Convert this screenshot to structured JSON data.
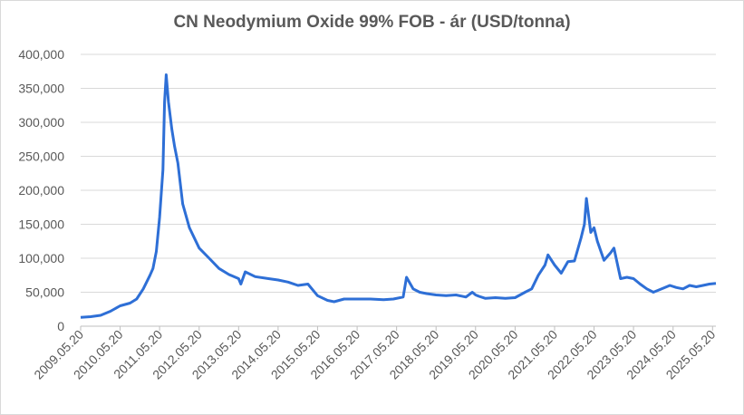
{
  "chart_data": {
    "type": "line",
    "title": "CN Neodymium Oxide 99% FOB - ár (USD/tonna)",
    "xlabel": "",
    "ylabel": "",
    "ylim": [
      0,
      400000
    ],
    "xlim": [
      "2009.05.20",
      "2025.06.20"
    ],
    "grid": "horizontal",
    "legend": "none",
    "line_color": "#2e6fd6",
    "y_ticks": [
      "0",
      "50,000",
      "100,000",
      "150,000",
      "200,000",
      "250,000",
      "300,000",
      "350,000",
      "400,000"
    ],
    "x_ticks": [
      "2009.05.20",
      "2010.05.20",
      "2011.05.20",
      "2012.05.20",
      "2013.05.20",
      "2014.05.20",
      "2015.05.20",
      "2016.05.20",
      "2017.05.20",
      "2018.05.20",
      "2019.05.20",
      "2020.05.20",
      "2021.05.20",
      "2022.05.20",
      "2023.05.20",
      "2024.05.20",
      "2025.05.20"
    ],
    "series": [
      {
        "x": [
          "2009.05.20",
          "2009.08.20",
          "2009.11.20",
          "2010.02.20",
          "2010.05.20",
          "2010.08.20",
          "2010.10.20",
          "2010.12.20",
          "2011.02.20",
          "2011.03.20",
          "2011.04.20",
          "2011.05.20",
          "2011.06.20",
          "2011.07.05",
          "2011.07.20",
          "2011.08.10",
          "2011.09.10",
          "2011.10.05",
          "2011.11.05",
          "2011.12.20",
          "2012.02.20",
          "2012.05.20",
          "2012.08.20",
          "2012.11.20",
          "2013.02.20",
          "2013.05.20",
          "2013.06.10",
          "2013.07.20",
          "2013.10.20",
          "2014.02.20",
          "2014.05.20",
          "2014.08.20",
          "2014.11.20",
          "2015.02.20",
          "2015.05.20",
          "2015.08.20",
          "2015.10.20",
          "2016.01.20",
          "2016.05.20",
          "2016.09.20",
          "2017.01.20",
          "2017.04.20",
          "2017.07.20",
          "2017.08.20",
          "2017.10.20",
          "2017.12.20",
          "2018.02.20",
          "2018.05.20",
          "2018.08.20",
          "2018.11.20",
          "2019.02.20",
          "2019.04.20",
          "2019.05.20",
          "2019.06.20",
          "2019.08.20",
          "2019.11.20",
          "2020.02.20",
          "2020.05.20",
          "2020.08.20",
          "2020.10.20",
          "2020.12.20",
          "2021.02.20",
          "2021.03.20",
          "2021.05.20",
          "2021.07.20",
          "2021.09.20",
          "2021.11.20",
          "2022.01.20",
          "2022.02.20",
          "2022.03.10",
          "2022.04.20",
          "2022.05.20",
          "2022.06.20",
          "2022.08.20",
          "2022.10.20",
          "2022.11.20",
          "2023.01.20",
          "2023.03.20",
          "2023.05.20",
          "2023.07.20",
          "2023.09.20",
          "2023.11.20",
          "2024.02.20",
          "2024.04.20",
          "2024.06.20",
          "2024.08.20",
          "2024.10.20",
          "2024.12.20",
          "2025.02.20",
          "2025.04.20",
          "2025.06.20"
        ],
        "values": [
          13000,
          14000,
          16000,
          22000,
          30000,
          34000,
          40000,
          55000,
          75000,
          85000,
          110000,
          160000,
          230000,
          330000,
          370000,
          330000,
          290000,
          265000,
          240000,
          180000,
          145000,
          115000,
          100000,
          85000,
          76000,
          70000,
          62000,
          80000,
          73000,
          70000,
          68000,
          65000,
          60000,
          62000,
          45000,
          38000,
          36000,
          40000,
          40000,
          40000,
          39000,
          40000,
          43000,
          72000,
          55000,
          50000,
          48000,
          46000,
          45000,
          46000,
          43000,
          50000,
          46000,
          44000,
          41000,
          42000,
          41000,
          42000,
          50000,
          55000,
          75000,
          90000,
          105000,
          90000,
          78000,
          95000,
          96000,
          130000,
          150000,
          188000,
          138000,
          145000,
          125000,
          97000,
          108000,
          115000,
          70000,
          72000,
          70000,
          62000,
          55000,
          50000,
          56000,
          60000,
          57000,
          55000,
          60000,
          58000,
          60000,
          62000,
          63000
        ]
      }
    ]
  }
}
